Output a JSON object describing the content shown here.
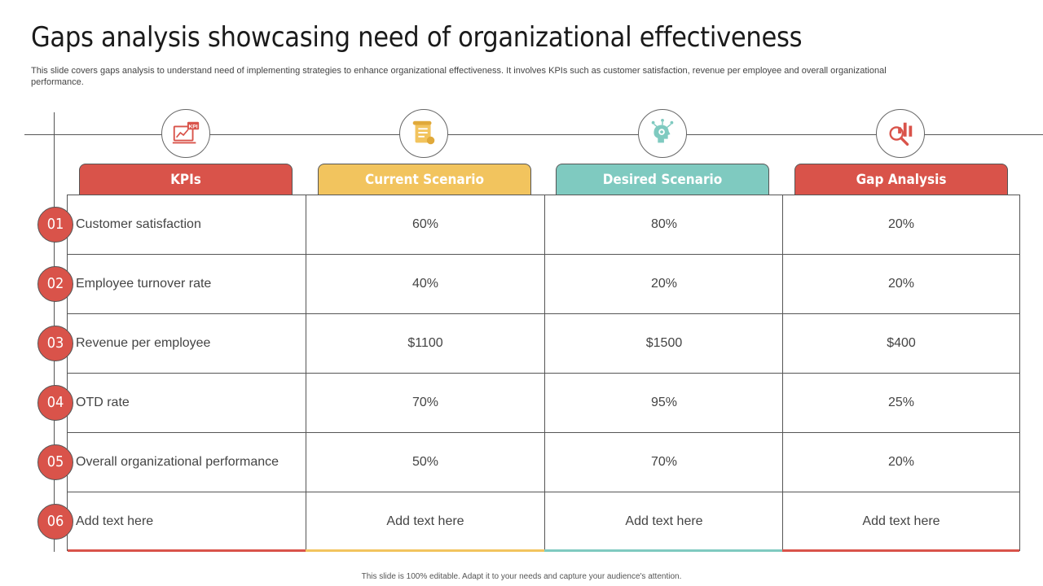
{
  "title": "Gaps analysis showcasing need of organizational effectiveness",
  "subtitle": "This slide covers gaps analysis to understand need of implementing strategies to enhance organizational effectiveness. It involves KPIs such as customer satisfaction, revenue per employee and overall organizational performance.",
  "colors": {
    "red": "#d9534a",
    "yellow": "#f2c45e",
    "teal": "#7fcac0"
  },
  "icons": [
    "kpi-icon",
    "scroll-icon",
    "brain-network-icon",
    "magnifier-chart-icon"
  ],
  "kpi_icon_text": "KPI",
  "headers": [
    "KPIs",
    "Current Scenario",
    "Desired Scenario",
    "Gap Analysis"
  ],
  "rows": [
    {
      "num": "01",
      "kpi": "Customer satisfaction",
      "current": "60%",
      "desired": "80%",
      "gap": "20%"
    },
    {
      "num": "02",
      "kpi": "Employee turnover  rate",
      "current": "40%",
      "desired": "20%",
      "gap": "20%"
    },
    {
      "num": "03",
      "kpi": "Revenue  per employee",
      "current": "$1100",
      "desired": "$1500",
      "gap": "$400"
    },
    {
      "num": "04",
      "kpi": "OTD rate",
      "current": "70%",
      "desired": "95%",
      "gap": "25%"
    },
    {
      "num": "05",
      "kpi": "Overall  organizational performance",
      "current": "50%",
      "desired": "70%",
      "gap": "20%"
    },
    {
      "num": "06",
      "kpi": "Add text here",
      "current": "Add text here",
      "desired": "Add text here",
      "gap": "Add text here"
    }
  ],
  "footer": "This slide is 100% editable.  Adapt it to your needs and capture your audience's attention."
}
